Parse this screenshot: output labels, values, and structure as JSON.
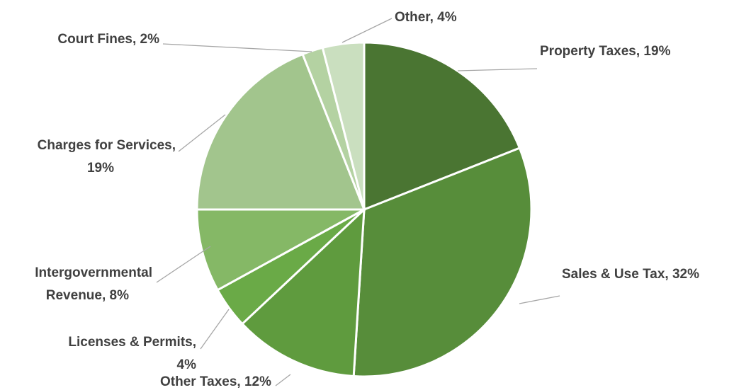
{
  "chart_data": {
    "type": "pie",
    "title": "",
    "start_angle_deg": 0,
    "direction": "clockwise",
    "slices": [
      {
        "name": "Property Taxes",
        "value": 19,
        "color": "#4a7532",
        "label": [
          "Property Taxes, 19%"
        ]
      },
      {
        "name": "Sales & Use Tax",
        "value": 32,
        "color": "#578d3a",
        "label": [
          "Sales & Use Tax, 32%"
        ]
      },
      {
        "name": "Other Taxes",
        "value": 12,
        "color": "#5f9b3e",
        "label": [
          "Other Taxes, 12%"
        ]
      },
      {
        "name": "Licenses & Permits",
        "value": 4,
        "color": "#6aaa47",
        "label": [
          "Licenses & Permits,",
          "4%"
        ]
      },
      {
        "name": "Intergovernmental Revenue",
        "value": 8,
        "color": "#85b866",
        "label": [
          "Intergovernmental",
          "Revenue, 8%"
        ]
      },
      {
        "name": "Charges for Services",
        "value": 19,
        "color": "#a2c58d",
        "label": [
          "Charges for Services,",
          "19%"
        ]
      },
      {
        "name": "Court Fines",
        "value": 2,
        "color": "#b4d2a2",
        "label": [
          "Court Fines, 2%"
        ]
      },
      {
        "name": "Other",
        "value": 4,
        "color": "#cadfbf",
        "label": [
          "Other, 4%"
        ]
      }
    ]
  }
}
